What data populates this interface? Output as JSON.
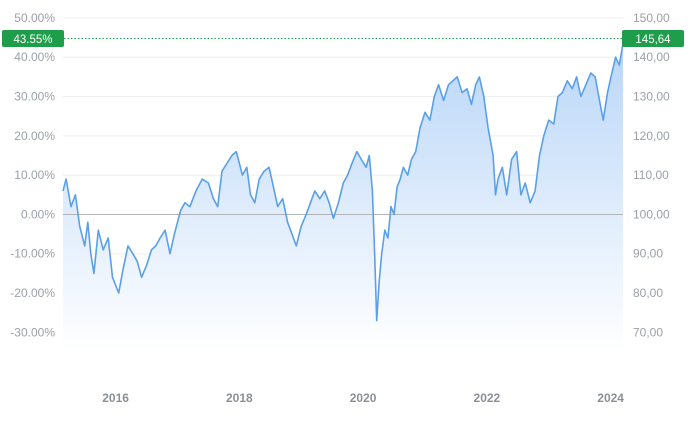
{
  "chart_data": {
    "type": "area",
    "y_left": {
      "ticks": [
        "50.00%",
        "40.00%",
        "30.00%",
        "20.00%",
        "10.00%",
        "0.00%",
        "-10.00%",
        "-20.00%",
        "-30.00%"
      ],
      "range": [
        -35,
        51
      ]
    },
    "y_right": {
      "ticks": [
        "150,00",
        "140,00",
        "130,00",
        "120,00",
        "110,00",
        "100,00",
        "90,00",
        "80,00",
        "70,00"
      ],
      "range": [
        65,
        151
      ]
    },
    "x_ticks": [
      {
        "label": "2016",
        "year": 2016.0
      },
      {
        "label": "2018",
        "year": 2018.0
      },
      {
        "label": "2020",
        "year": 2020.0
      },
      {
        "label": "2022",
        "year": 2022.0
      },
      {
        "label": "2024",
        "year": 2024.0
      }
    ],
    "x_range": [
      2015.15,
      2024.2
    ],
    "current_percent_label": "43.55%",
    "current_value_label": "145,64",
    "current_percent": 43.55,
    "baseline_percent": 0,
    "colors": {
      "line": "#5aa0e8",
      "area_top": "#b9d6f8",
      "area_bottom": "#ffffff",
      "badge": "#1e9e4a",
      "baseline": "#b4b4b4",
      "grid": "#eeeeee",
      "dotted_line": "#1e9e4a"
    },
    "series": [
      {
        "x": [
          2015.15,
          2015.2,
          2015.28,
          2015.35,
          2015.42,
          2015.5,
          2015.55,
          2015.6,
          2015.65,
          2015.72,
          2015.8,
          2015.88,
          2015.95,
          2016.05,
          2016.12,
          2016.2,
          2016.28,
          2016.35,
          2016.42,
          2016.5,
          2016.58,
          2016.65,
          2016.72,
          2016.8,
          2016.88,
          2016.95,
          2017.05,
          2017.12,
          2017.2,
          2017.3,
          2017.4,
          2017.5,
          2017.58,
          2017.65,
          2017.72,
          2017.8,
          2017.88,
          2017.95,
          2018.05,
          2018.12,
          2018.18,
          2018.25,
          2018.32,
          2018.4,
          2018.48,
          2018.55,
          2018.62,
          2018.7,
          2018.78,
          2018.85,
          2018.92,
          2019.0,
          2019.08,
          2019.15,
          2019.22,
          2019.3,
          2019.38,
          2019.45,
          2019.52,
          2019.6,
          2019.68,
          2019.75,
          2019.82,
          2019.9,
          2019.97,
          2020.05,
          2020.1,
          2020.15,
          2020.19,
          2020.22,
          2020.26,
          2020.3,
          2020.35,
          2020.4,
          2020.45,
          2020.5,
          2020.55,
          2020.6,
          2020.65,
          2020.72,
          2020.78,
          2020.85,
          2020.92,
          2021.0,
          2021.08,
          2021.15,
          2021.22,
          2021.3,
          2021.38,
          2021.45,
          2021.52,
          2021.6,
          2021.68,
          2021.75,
          2021.82,
          2021.88,
          2021.95,
          2022.02,
          2022.1,
          2022.14,
          2022.18,
          2022.25,
          2022.32,
          2022.4,
          2022.48,
          2022.55,
          2022.62,
          2022.7,
          2022.78,
          2022.85,
          2022.92,
          2023.0,
          2023.08,
          2023.15,
          2023.22,
          2023.3,
          2023.38,
          2023.45,
          2023.52,
          2023.6,
          2023.68,
          2023.75,
          2023.82,
          2023.88,
          2023.95,
          2024.02,
          2024.08,
          2024.14,
          2024.2
        ],
        "y": [
          6,
          9,
          2,
          5,
          -3,
          -8,
          -2,
          -10,
          -15,
          -4,
          -9,
          -6,
          -16,
          -20,
          -14,
          -8,
          -10,
          -12,
          -16,
          -13,
          -9,
          -8,
          -6,
          -4,
          -10,
          -5,
          1,
          3,
          2,
          6,
          9,
          8,
          4,
          2,
          11,
          13,
          15,
          16,
          10,
          12,
          5,
          3,
          9,
          11,
          12,
          7,
          2,
          4,
          -2,
          -5,
          -8,
          -3,
          0,
          3,
          6,
          4,
          6,
          3,
          -1,
          3,
          8,
          10,
          13,
          16,
          14,
          12,
          15,
          6,
          -12,
          -27,
          -17,
          -10,
          -4,
          -6,
          2,
          0,
          7,
          9,
          12,
          10,
          14,
          16,
          22,
          26,
          24,
          30,
          33,
          29,
          33,
          34,
          35,
          31,
          32,
          28,
          33,
          35,
          30,
          22,
          15,
          5,
          9,
          12,
          5,
          14,
          16,
          5,
          8,
          3,
          6,
          15,
          20,
          24,
          23,
          30,
          31,
          34,
          32,
          35,
          30,
          33,
          36,
          35,
          29,
          24,
          31,
          36,
          40,
          38,
          43.55
        ]
      }
    ]
  }
}
